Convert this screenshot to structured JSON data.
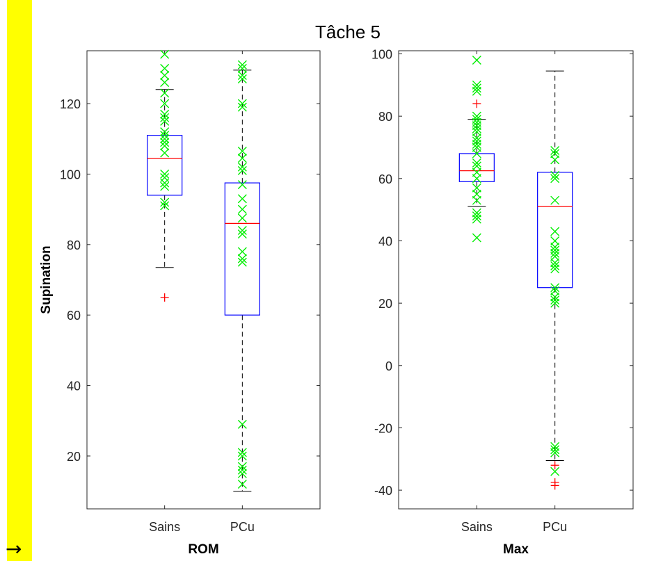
{
  "figure": {
    "title": "Tâche 5",
    "stripe_color": "#ffff00",
    "arrow_icon": "→"
  },
  "chart_data": [
    {
      "type": "box",
      "title": "",
      "xlabel": "ROM",
      "ylabel": "Supination",
      "ylim": [
        5,
        135
      ],
      "yticks": [
        20,
        40,
        60,
        80,
        100,
        120
      ],
      "categories": [
        "Sains",
        "PCu"
      ],
      "boxes": [
        {
          "name": "Sains",
          "q1": 94,
          "median": 104.5,
          "q3": 111,
          "whisker_low": 73.5,
          "whisker_high": 124,
          "outliers": [
            65
          ],
          "points": [
            134,
            130,
            128,
            126,
            123,
            120,
            117,
            116,
            115,
            112,
            111,
            110,
            109,
            108,
            106,
            100,
            99,
            97.5,
            96.5,
            92,
            91
          ]
        },
        {
          "name": "PCu",
          "q1": 60,
          "median": 86,
          "q3": 97.5,
          "whisker_low": 10,
          "whisker_high": 129.5,
          "outliers": [],
          "points": [
            131,
            130,
            128,
            127,
            120,
            119,
            106.5,
            104.5,
            102,
            101,
            97,
            93,
            90,
            87.5,
            84,
            83,
            78,
            76,
            75,
            29,
            21,
            20,
            17,
            16,
            15,
            12
          ]
        }
      ],
      "colors": {
        "box": "#0000ff",
        "median": "#ff0000",
        "whisker": "#000000",
        "outlier": "#ff0000",
        "points": "#00ee00"
      }
    },
    {
      "type": "box",
      "title": "",
      "xlabel": "Max",
      "ylabel": "",
      "ylim": [
        -46,
        101
      ],
      "yticks": [
        -40,
        -20,
        0,
        20,
        40,
        60,
        80,
        100
      ],
      "categories": [
        "Sains",
        "PCu"
      ],
      "boxes": [
        {
          "name": "Sains",
          "q1": 59,
          "median": 62.5,
          "q3": 68,
          "whisker_low": 51,
          "whisker_high": 79,
          "outliers": [
            84
          ],
          "points": [
            98,
            90,
            89,
            88,
            80,
            79,
            78,
            77,
            76,
            75,
            73,
            72,
            71,
            70,
            68,
            65,
            64,
            62,
            60,
            57,
            55,
            53,
            49,
            48,
            47,
            41
          ]
        },
        {
          "name": "PCu",
          "q1": 25,
          "median": 51,
          "q3": 62,
          "whisker_low": -30.5,
          "whisker_high": 94.5,
          "outliers": [
            -32,
            -37.5,
            -38.5
          ],
          "points": [
            69,
            68,
            66,
            61,
            60,
            53,
            43,
            40,
            38,
            37,
            36,
            35,
            33,
            32,
            31,
            25,
            24,
            22,
            21,
            20,
            -26,
            -27,
            -28,
            -34
          ]
        }
      ],
      "colors": {
        "box": "#0000ff",
        "median": "#ff0000",
        "whisker": "#000000",
        "outlier": "#ff0000",
        "points": "#00ee00"
      }
    }
  ]
}
